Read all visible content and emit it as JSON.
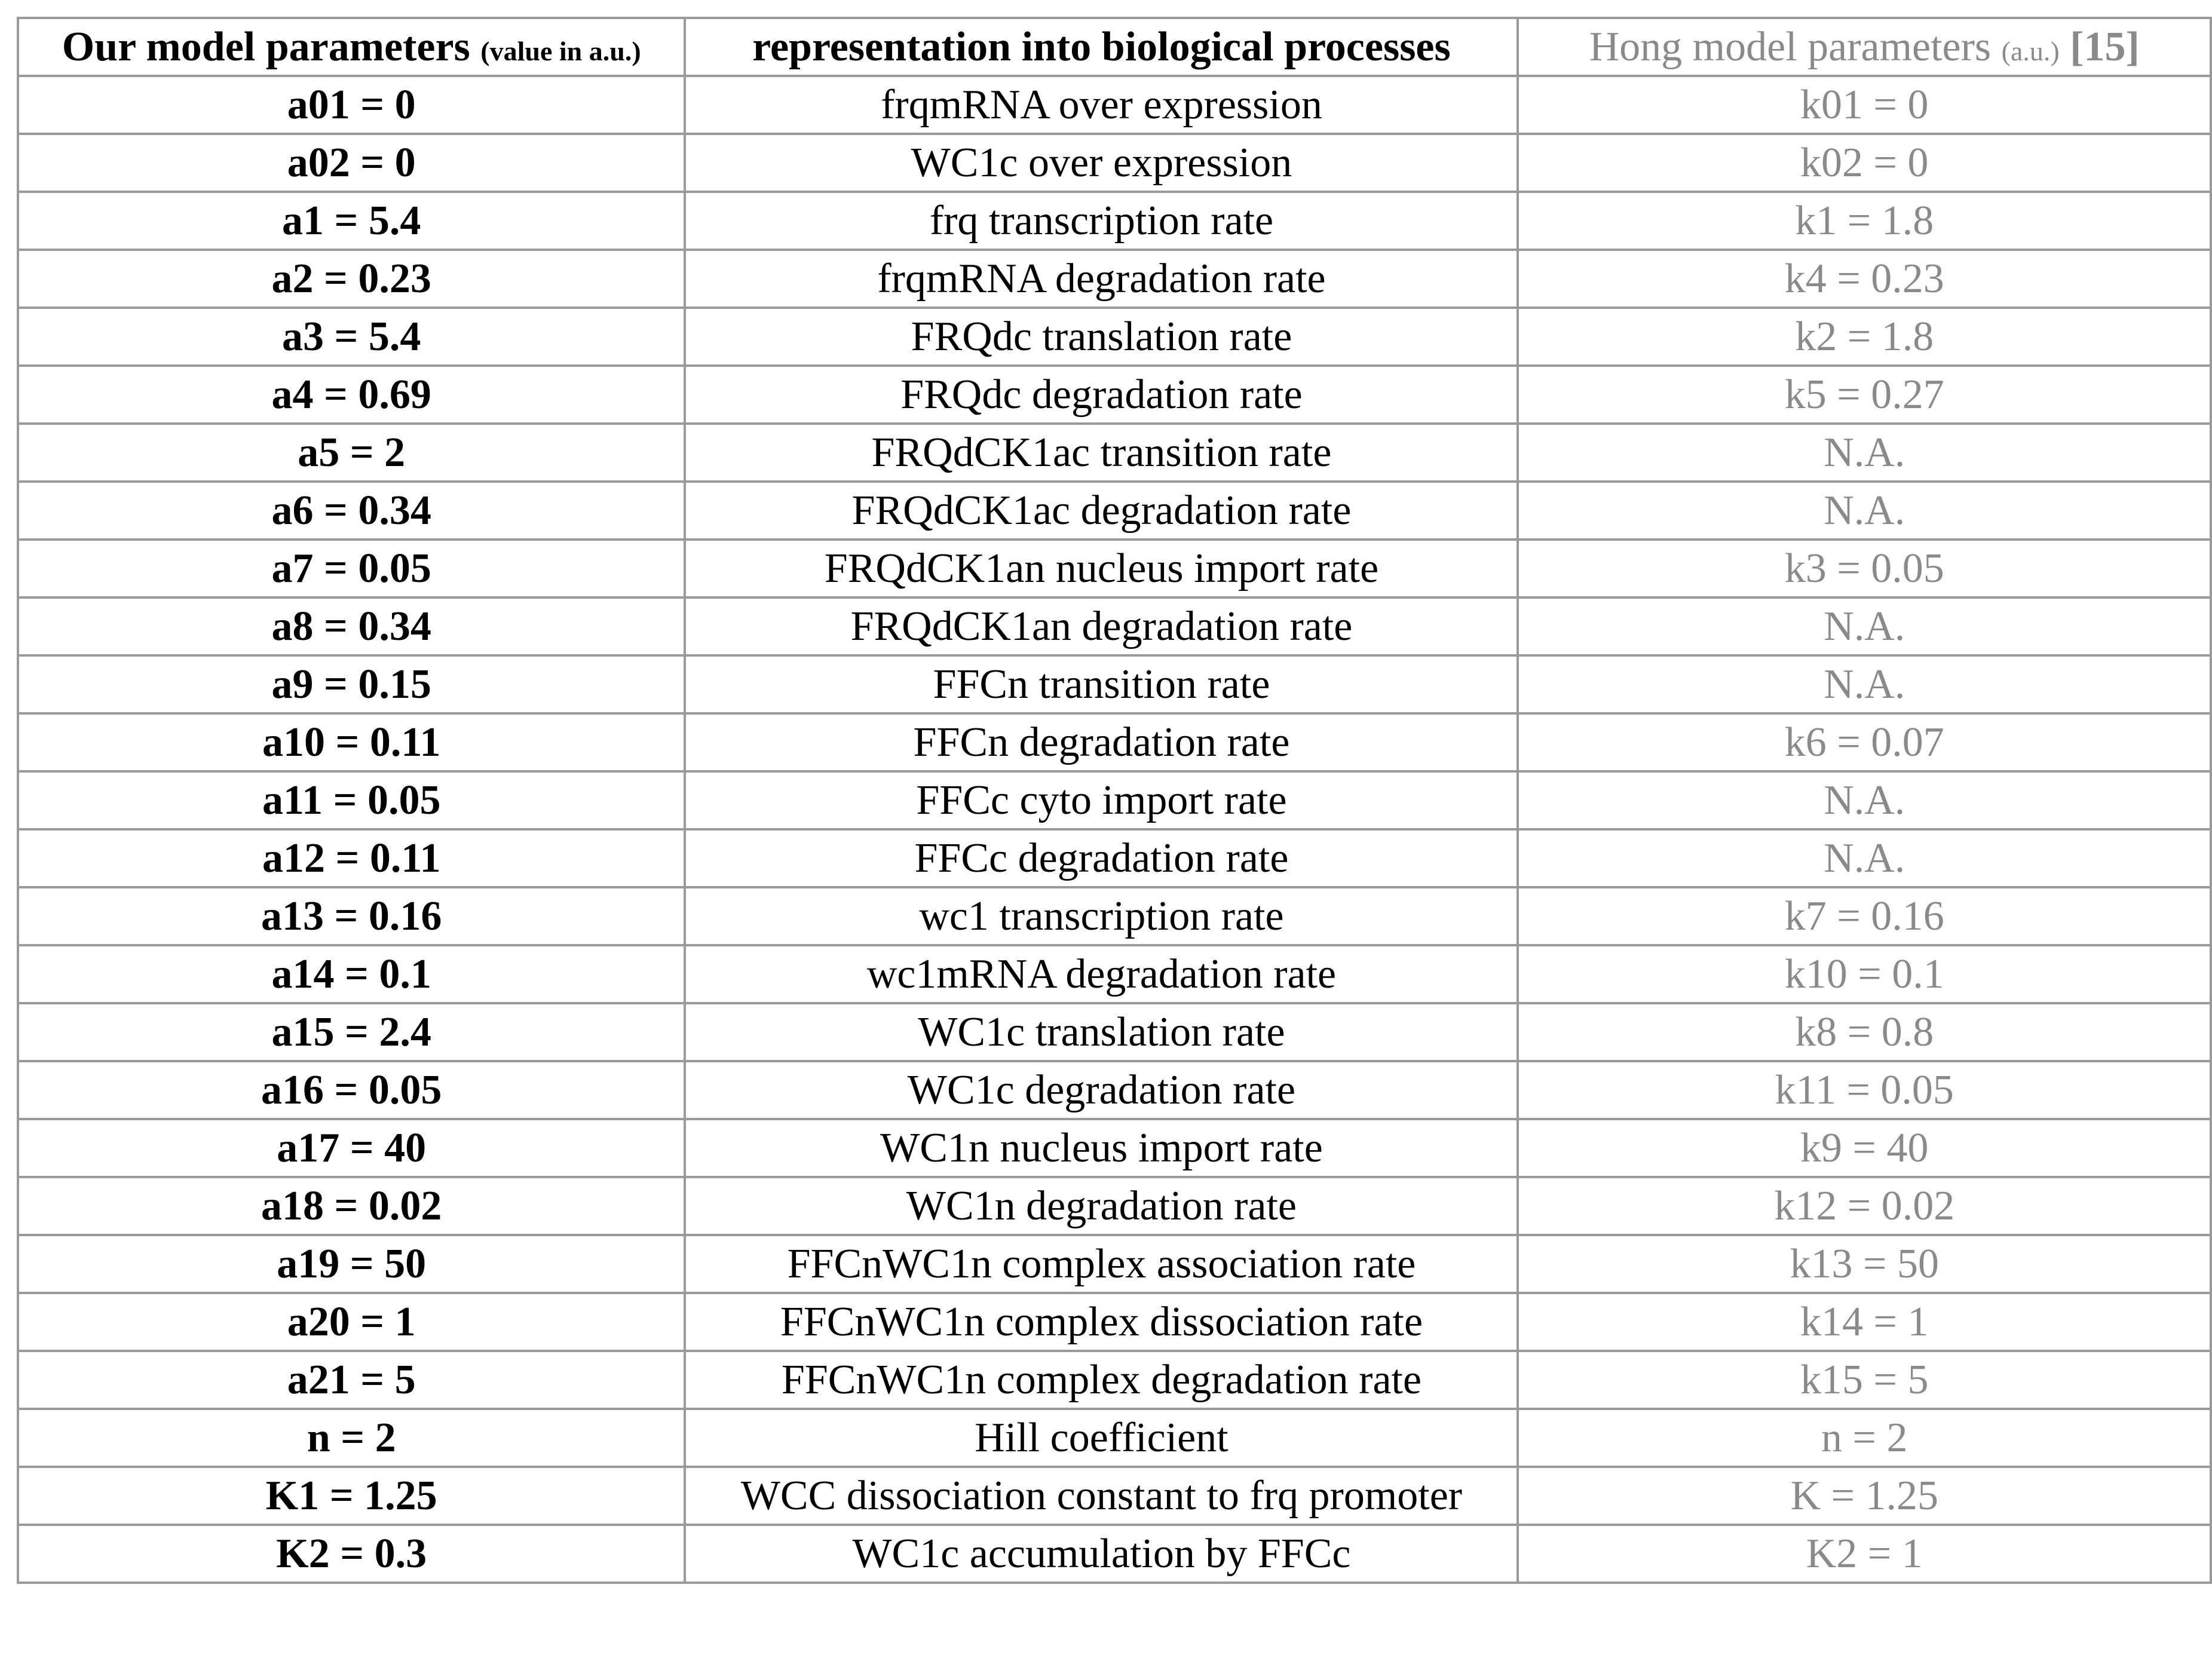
{
  "header": {
    "col1_main": "Our model parameters",
    "col1_note": "(value in a.u.)",
    "col2": "representation into biological processes",
    "col3_main": "Hong model parameters",
    "col3_note": "(a.u.)",
    "col3_ref": "[15]"
  },
  "rows": [
    {
      "ours": "a01 = 0",
      "bio": "frqmRNA over expression",
      "hong": "k01 = 0"
    },
    {
      "ours": "a02 = 0",
      "bio": "WC1c over expression",
      "hong": "k02 = 0"
    },
    {
      "ours": "a1 = 5.4",
      "bio": "frq transcription rate",
      "hong": "k1 = 1.8"
    },
    {
      "ours": "a2 = 0.23",
      "bio": "frqmRNA degradation rate",
      "hong": "k4 = 0.23"
    },
    {
      "ours": "a3 = 5.4",
      "bio": "FRQdc translation rate",
      "hong": "k2 = 1.8"
    },
    {
      "ours": "a4 = 0.69",
      "bio": "FRQdc degradation rate",
      "hong": "k5 = 0.27"
    },
    {
      "ours": "a5 = 2",
      "bio": "FRQdCK1ac transition rate",
      "hong": "N.A."
    },
    {
      "ours": "a6 = 0.34",
      "bio": "FRQdCK1ac degradation rate",
      "hong": "N.A."
    },
    {
      "ours": "a7 = 0.05",
      "bio": "FRQdCK1an nucleus import rate",
      "hong": "k3 = 0.05"
    },
    {
      "ours": "a8 = 0.34",
      "bio": "FRQdCK1an degradation rate",
      "hong": "N.A."
    },
    {
      "ours": "a9 = 0.15",
      "bio": "FFCn transition rate",
      "hong": "N.A."
    },
    {
      "ours": "a10 = 0.11",
      "bio": "FFCn degradation rate",
      "hong": "k6 = 0.07"
    },
    {
      "ours": "a11 = 0.05",
      "bio": "FFCc cyto import rate",
      "hong": "N.A."
    },
    {
      "ours": "a12 = 0.11",
      "bio": "FFCc degradation rate",
      "hong": "N.A."
    },
    {
      "ours": "a13 = 0.16",
      "bio": "wc1 transcription rate",
      "hong": "k7 = 0.16"
    },
    {
      "ours": "a14 = 0.1",
      "bio": "wc1mRNA degradation rate",
      "hong": "k10 = 0.1"
    },
    {
      "ours": "a15 = 2.4",
      "bio": "WC1c translation rate",
      "hong": "k8 = 0.8"
    },
    {
      "ours": "a16 = 0.05",
      "bio": "WC1c degradation rate",
      "hong": "k11 = 0.05"
    },
    {
      "ours": "a17 = 40",
      "bio": "WC1n nucleus import rate",
      "hong": "k9 = 40"
    },
    {
      "ours": "a18 = 0.02",
      "bio": "WC1n degradation rate",
      "hong": "k12 = 0.02"
    },
    {
      "ours": "a19 = 50",
      "bio": "FFCnWC1n complex association rate",
      "hong": "k13 = 50"
    },
    {
      "ours": "a20 = 1",
      "bio": "FFCnWC1n complex dissociation rate",
      "hong": "k14 = 1"
    },
    {
      "ours": "a21 = 5",
      "bio": "FFCnWC1n complex degradation rate",
      "hong": "k15 = 5"
    },
    {
      "ours": "n = 2",
      "bio": "Hill coefficient",
      "hong": "n = 2"
    },
    {
      "ours": "K1 = 1.25",
      "bio": "WCC dissociation constant to frq promoter",
      "hong": "K = 1.25"
    },
    {
      "ours": "K2 = 0.3",
      "bio": "WC1c accumulation by FFCc",
      "hong": "K2 = 1"
    }
  ]
}
